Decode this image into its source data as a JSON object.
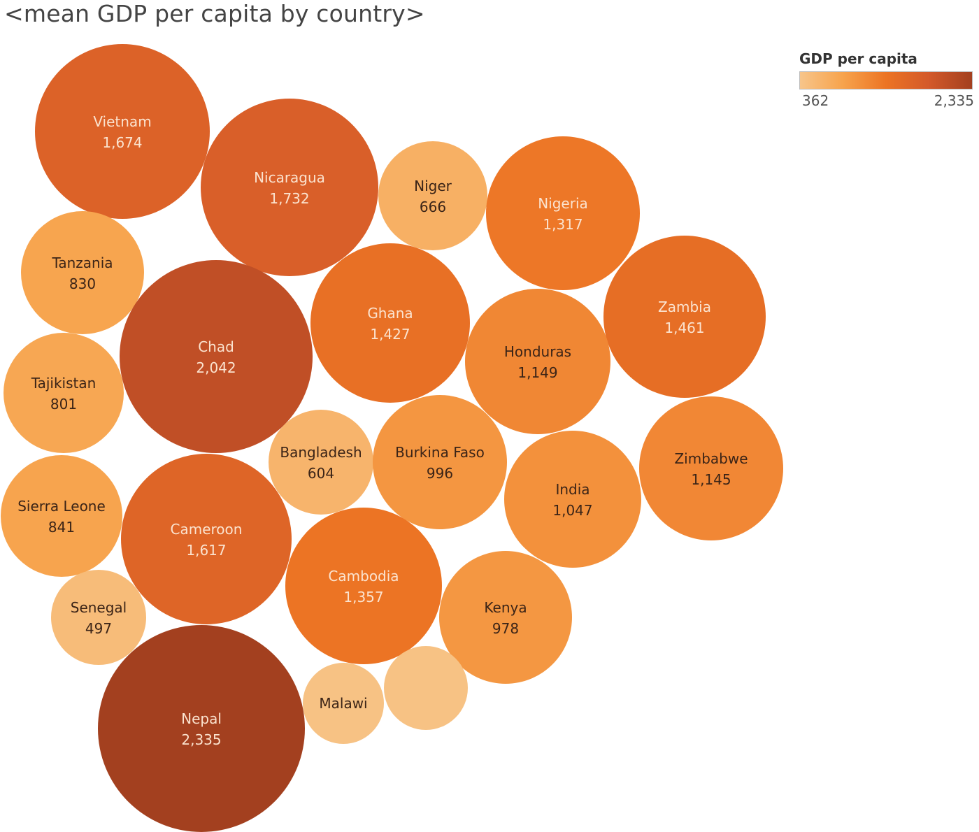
{
  "title": "<mean GDP per capita by country>",
  "legend": {
    "title": "GDP per capita",
    "min_label": "362",
    "max_label": "2,335"
  },
  "colors": {
    "scale": [
      "#f7c58a",
      "#f7a34c",
      "#ec7424",
      "#d3592a",
      "#a3401f"
    ],
    "dark_text": "#3b2417",
    "light_text": "#fbe3cf"
  },
  "chart_data": {
    "type": "bubble",
    "title": "<mean GDP per capita by country>",
    "color_range": [
      362,
      2335
    ],
    "series": [
      {
        "name": "Vietnam",
        "label": "1,674",
        "value": 1674
      },
      {
        "name": "Nicaragua",
        "label": "1,732",
        "value": 1732
      },
      {
        "name": "Niger",
        "label": "666",
        "value": 666
      },
      {
        "name": "Nigeria",
        "label": "1,317",
        "value": 1317
      },
      {
        "name": "Tanzania",
        "label": "830",
        "value": 830
      },
      {
        "name": "Chad",
        "label": "2,042",
        "value": 2042
      },
      {
        "name": "Ghana",
        "label": "1,427",
        "value": 1427
      },
      {
        "name": "Zambia",
        "label": "1,461",
        "value": 1461
      },
      {
        "name": "Honduras",
        "label": "1,149",
        "value": 1149
      },
      {
        "name": "Tajikistan",
        "label": "801",
        "value": 801
      },
      {
        "name": "Bangladesh",
        "label": "604",
        "value": 604
      },
      {
        "name": "Burkina Faso",
        "label": "996",
        "value": 996
      },
      {
        "name": "Zimbabwe",
        "label": "1,145",
        "value": 1145
      },
      {
        "name": "India",
        "label": "1,047",
        "value": 1047
      },
      {
        "name": "Sierra Leone",
        "label": "841",
        "value": 841
      },
      {
        "name": "Cameroon",
        "label": "1,617",
        "value": 1617
      },
      {
        "name": "Cambodia",
        "label": "1,357",
        "value": 1357
      },
      {
        "name": "Senegal",
        "label": "497",
        "value": 497
      },
      {
        "name": "Kenya",
        "label": "978",
        "value": 978
      },
      {
        "name": "Nepal",
        "label": "2,335",
        "value": 2335
      },
      {
        "name": "Malawi",
        "label": "",
        "value": 410
      },
      {
        "name": "",
        "label": "",
        "value": 410
      }
    ]
  }
}
